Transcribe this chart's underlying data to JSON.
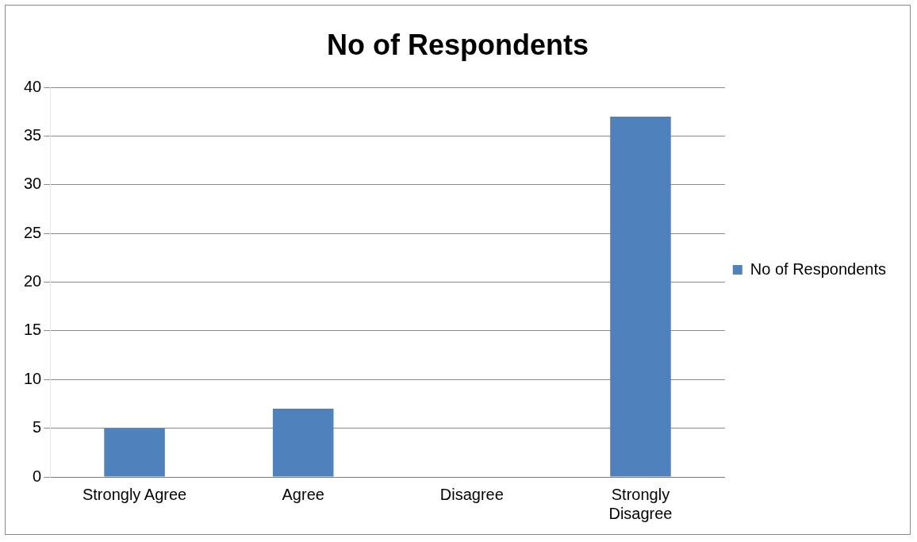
{
  "chart_data": {
    "type": "bar",
    "title": "No of Respondents",
    "categories": [
      "Strongly Agree",
      "Agree",
      "Disagree",
      "Strongly Disagree"
    ],
    "series": [
      {
        "name": "No of Respondents",
        "color": "#4f81bd",
        "values": [
          5,
          7,
          0,
          37
        ]
      }
    ],
    "ylim": [
      0,
      40
    ],
    "yticks": [
      0,
      5,
      10,
      15,
      20,
      25,
      30,
      35,
      40
    ],
    "grid": "y",
    "legend": "right"
  }
}
